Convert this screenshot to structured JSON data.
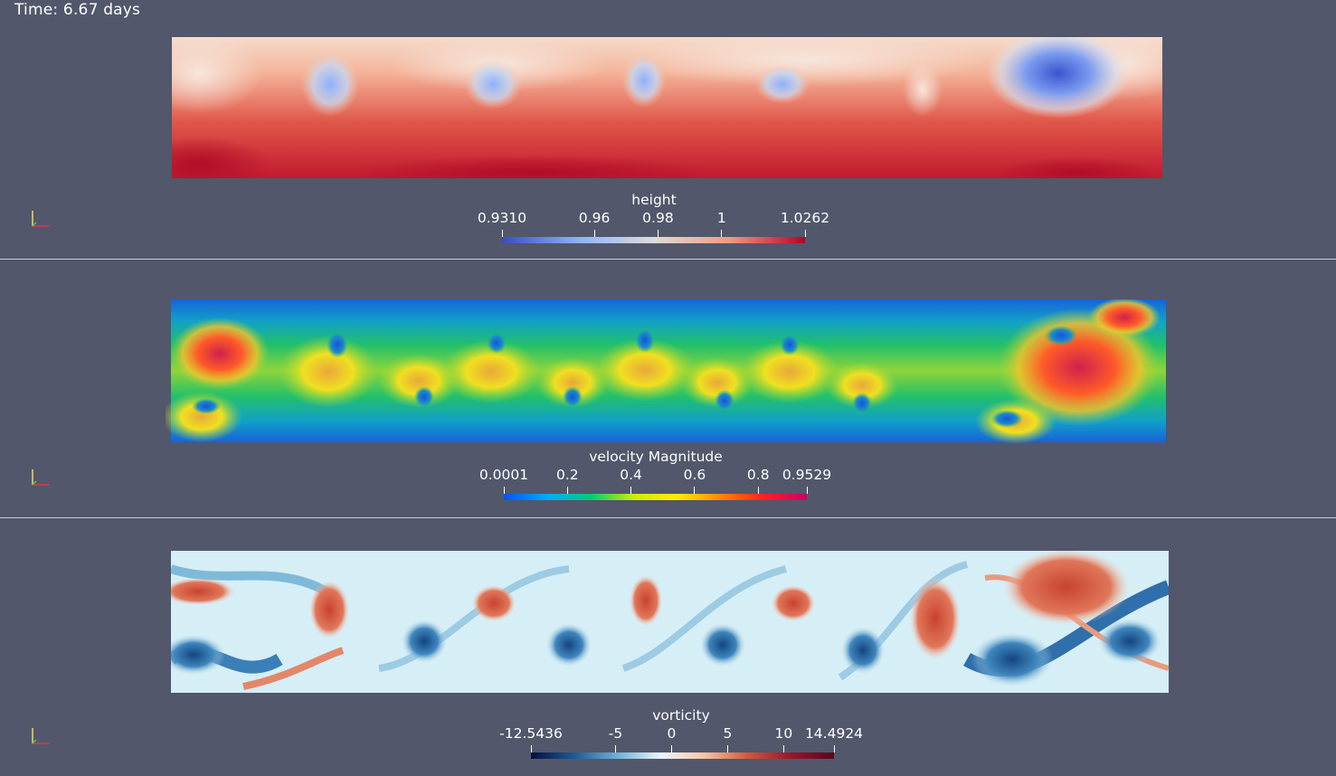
{
  "time_label": "Time: 6.67 days",
  "panels": [
    {
      "colorbar": {
        "title": "height",
        "tick_labels": [
          "0.9310",
          "0.96",
          "0.98",
          "1",
          "1.0262"
        ],
        "tick_values": [
          0.931,
          0.96,
          0.98,
          1.0,
          1.0262
        ],
        "range": [
          0.931,
          1.0262
        ],
        "colormap": [
          "#3b4cc0",
          "#8db0fe",
          "#dddcdc",
          "#f49a7b",
          "#b40426"
        ]
      }
    },
    {
      "colorbar": {
        "title": "velocity Magnitude",
        "tick_labels": [
          "0.0001",
          "0.2",
          "0.4",
          "0.6",
          "0.8",
          "0.9529"
        ],
        "tick_values": [
          0.0001,
          0.2,
          0.4,
          0.6,
          0.8,
          0.9529
        ],
        "range": [
          0.0001,
          0.9529
        ],
        "colormap": [
          "#0a50ff",
          "#00aaff",
          "#00cc77",
          "#ccee00",
          "#ffee00",
          "#ff8800",
          "#ff2020",
          "#cc0066"
        ]
      }
    },
    {
      "colorbar": {
        "title": "vorticity",
        "tick_labels": [
          "-12.5436",
          "-5",
          "0",
          "5",
          "10",
          "14.4924"
        ],
        "tick_values": [
          -12.5436,
          -5,
          0,
          5,
          10,
          14.4924
        ],
        "range": [
          -12.5436,
          14.4924
        ],
        "colormap": [
          "#05103a",
          "#1e5b95",
          "#6fb2d6",
          "#e9f6fb",
          "#f7c6a6",
          "#cf5a3c",
          "#98172a",
          "#5a0620"
        ]
      }
    }
  ]
}
